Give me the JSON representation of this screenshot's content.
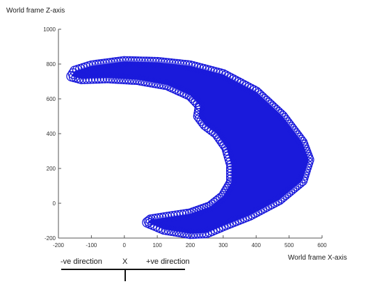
{
  "chart_data": {
    "type": "scatter",
    "xlabel": "World frame X-axis",
    "ylabel": "World frame Z-axis",
    "xlim": [
      -200,
      600
    ],
    "ylim": [
      -200,
      1000
    ],
    "xticks": [
      -200,
      -100,
      0,
      100,
      200,
      300,
      400,
      500,
      600
    ],
    "yticks": [
      -200,
      0,
      200,
      400,
      600,
      800,
      1000
    ],
    "marker": "circle",
    "marker_color": "#1a1adb",
    "annotation": {
      "neg_label": "-ve direction",
      "axis_label": "X",
      "pos_label": "+ve direction"
    },
    "shape_summary": "crescent-shaped band of overlapping circle markers",
    "outer_boundary": [
      [
        -160,
        730
      ],
      [
        -150,
        760
      ],
      [
        -100,
        790
      ],
      [
        0,
        815
      ],
      [
        100,
        810
      ],
      [
        200,
        790
      ],
      [
        300,
        740
      ],
      [
        400,
        640
      ],
      [
        480,
        500
      ],
      [
        540,
        350
      ],
      [
        560,
        250
      ],
      [
        540,
        130
      ],
      [
        470,
        20
      ],
      [
        380,
        -70
      ],
      [
        300,
        -130
      ],
      [
        250,
        -170
      ],
      [
        200,
        -175
      ],
      [
        120,
        -150
      ],
      [
        70,
        -110
      ],
      [
        80,
        -95
      ]
    ],
    "inner_boundary": [
      [
        80,
        -95
      ],
      [
        130,
        -80
      ],
      [
        200,
        -60
      ],
      [
        260,
        -20
      ],
      [
        300,
        40
      ],
      [
        325,
        120
      ],
      [
        325,
        220
      ],
      [
        310,
        320
      ],
      [
        280,
        400
      ],
      [
        245,
        450
      ],
      [
        225,
        500
      ],
      [
        230,
        560
      ],
      [
        200,
        620
      ],
      [
        130,
        680
      ],
      [
        40,
        710
      ],
      [
        -50,
        720
      ],
      [
        -130,
        715
      ],
      [
        -160,
        730
      ]
    ]
  }
}
